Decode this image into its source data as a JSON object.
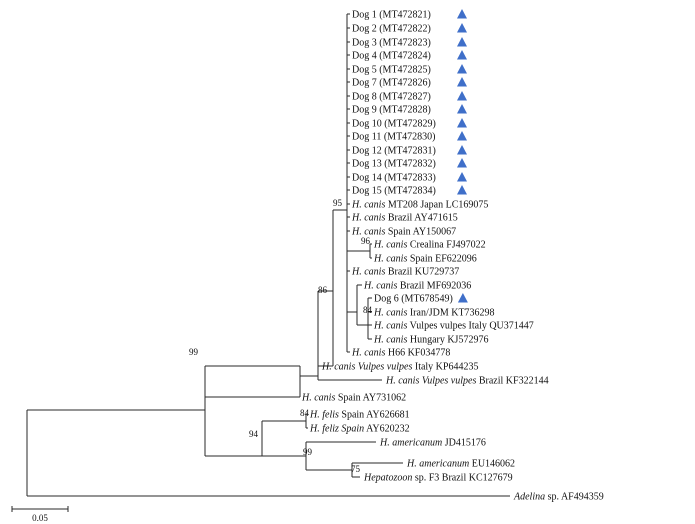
{
  "colors": {
    "line": "#2a2a2a",
    "text": "#111111",
    "marker": "#3f6fc9"
  },
  "marker_icon": "blue-triangle-icon",
  "scale_bar": {
    "label": "0.05"
  },
  "bootstrap_values": {
    "b95": "95",
    "b96": "96",
    "b86": "86",
    "b84a": "84",
    "b99a": "99",
    "b84b": "84",
    "b94": "94",
    "b99b": "99",
    "b75": "75"
  },
  "taxa": [
    {
      "id": "dog1",
      "parts": [
        {
          "t": "Dog 1 (MT472821)"
        }
      ],
      "marked": true
    },
    {
      "id": "dog2",
      "parts": [
        {
          "t": "Dog 2 (MT472822)"
        }
      ],
      "marked": true
    },
    {
      "id": "dog3",
      "parts": [
        {
          "t": "Dog 3 (MT472823)"
        }
      ],
      "marked": true
    },
    {
      "id": "dog4",
      "parts": [
        {
          "t": "Dog 4 (MT472824)"
        }
      ],
      "marked": true
    },
    {
      "id": "dog5",
      "parts": [
        {
          "t": "Dog 5 (MT472825)"
        }
      ],
      "marked": true
    },
    {
      "id": "dog7",
      "parts": [
        {
          "t": "Dog 7 (MT472826)"
        }
      ],
      "marked": true
    },
    {
      "id": "dog8",
      "parts": [
        {
          "t": "Dog 8 (MT472827)"
        }
      ],
      "marked": true
    },
    {
      "id": "dog9",
      "parts": [
        {
          "t": "Dog 9 (MT472828)"
        }
      ],
      "marked": true
    },
    {
      "id": "dog10",
      "parts": [
        {
          "t": "Dog 10 (MT472829)"
        }
      ],
      "marked": true
    },
    {
      "id": "dog11",
      "parts": [
        {
          "t": "Dog 11 (MT472830)"
        }
      ],
      "marked": true
    },
    {
      "id": "dog12",
      "parts": [
        {
          "t": "Dog 12 (MT472831)"
        }
      ],
      "marked": true
    },
    {
      "id": "dog13",
      "parts": [
        {
          "t": "Dog 13 (MT472832)"
        }
      ],
      "marked": true
    },
    {
      "id": "dog14",
      "parts": [
        {
          "t": "Dog 14 (MT472833)"
        }
      ],
      "marked": true
    },
    {
      "id": "dog15",
      "parts": [
        {
          "t": "Dog 15 (MT472834)"
        }
      ],
      "marked": true
    },
    {
      "id": "hc-mt208",
      "parts": [
        {
          "t": "H. canis",
          "i": true
        },
        {
          "t": " MT208 Japan LC169075"
        }
      ],
      "marked": false
    },
    {
      "id": "hc-brazil1",
      "parts": [
        {
          "t": "H. canis",
          "i": true
        },
        {
          "t": " Brazil AY471615"
        }
      ],
      "marked": false
    },
    {
      "id": "hc-spain1",
      "parts": [
        {
          "t": "H. canis",
          "i": true
        },
        {
          "t": " Spain AY150067"
        }
      ],
      "marked": false
    },
    {
      "id": "hc-crealina",
      "parts": [
        {
          "t": "H. canis",
          "i": true
        },
        {
          "t": " Crealina FJ497022"
        }
      ],
      "marked": false
    },
    {
      "id": "hc-spain2",
      "parts": [
        {
          "t": "H. canis",
          "i": true
        },
        {
          "t": " Spain EF622096"
        }
      ],
      "marked": false
    },
    {
      "id": "hc-brazil2",
      "parts": [
        {
          "t": "H. canis",
          "i": true
        },
        {
          "t": " Brazil KU729737"
        }
      ],
      "marked": false
    },
    {
      "id": "hc-brazil3",
      "parts": [
        {
          "t": "H. canis",
          "i": true
        },
        {
          "t": " Brazil MF692036"
        }
      ],
      "marked": false
    },
    {
      "id": "dog6",
      "parts": [
        {
          "t": "Dog 6 (MT678549)"
        }
      ],
      "marked": true
    },
    {
      "id": "hc-iran",
      "parts": [
        {
          "t": "H. canis",
          "i": true
        },
        {
          "t": " Iran/JDM KT736298"
        }
      ],
      "marked": false
    },
    {
      "id": "hc-vulpes-italy1",
      "parts": [
        {
          "t": "H. canis",
          "i": true
        },
        {
          "t": " Vulpes vulpes Italy QU371447"
        }
      ],
      "marked": false
    },
    {
      "id": "hc-hungary",
      "parts": [
        {
          "t": "H. canis",
          "i": true
        },
        {
          "t": " Hungary KJ572976"
        }
      ],
      "marked": false
    },
    {
      "id": "hc-h66",
      "parts": [
        {
          "t": "H. canis",
          "i": true
        },
        {
          "t": " H66 KF034778"
        }
      ],
      "marked": false
    },
    {
      "id": "hc-vulpes-italy2",
      "parts": [
        {
          "t": "H. canis Vulpes vulpes",
          "i": true
        },
        {
          "t": " Italy KP644235"
        }
      ],
      "marked": false
    },
    {
      "id": "hc-vulpes-brazil",
      "parts": [
        {
          "t": "H. canis Vulpes vulpes",
          "i": true
        },
        {
          "t": " Brazil KF322144"
        }
      ],
      "marked": false
    },
    {
      "id": "hc-spain3",
      "parts": [
        {
          "t": "H. canis",
          "i": true
        },
        {
          "t": " Spain AY731062"
        }
      ],
      "marked": false
    },
    {
      "id": "hf-spain1",
      "parts": [
        {
          "t": "H. felis",
          "i": true
        },
        {
          "t": " Spain AY626681"
        }
      ],
      "marked": false
    },
    {
      "id": "hf-spain2",
      "parts": [
        {
          "t": "H. feliz Spain",
          "i": true
        },
        {
          "t": " AY620232"
        }
      ],
      "marked": false
    },
    {
      "id": "ha-1",
      "parts": [
        {
          "t": "H. americanum",
          "i": true
        },
        {
          "t": " JD415176"
        }
      ],
      "marked": false
    },
    {
      "id": "ha-2",
      "parts": [
        {
          "t": "H. americanum",
          "i": true
        },
        {
          "t": " EU146062"
        }
      ],
      "marked": false
    },
    {
      "id": "hep-f3",
      "parts": [
        {
          "t": "Hepatozoon",
          "i": true
        },
        {
          "t": " sp. F3 Brazil KC127679"
        }
      ],
      "marked": false
    },
    {
      "id": "adelina",
      "parts": [
        {
          "t": "Adelina",
          "i": true
        },
        {
          "t": " sp. AF494359"
        }
      ],
      "marked": false
    }
  ]
}
